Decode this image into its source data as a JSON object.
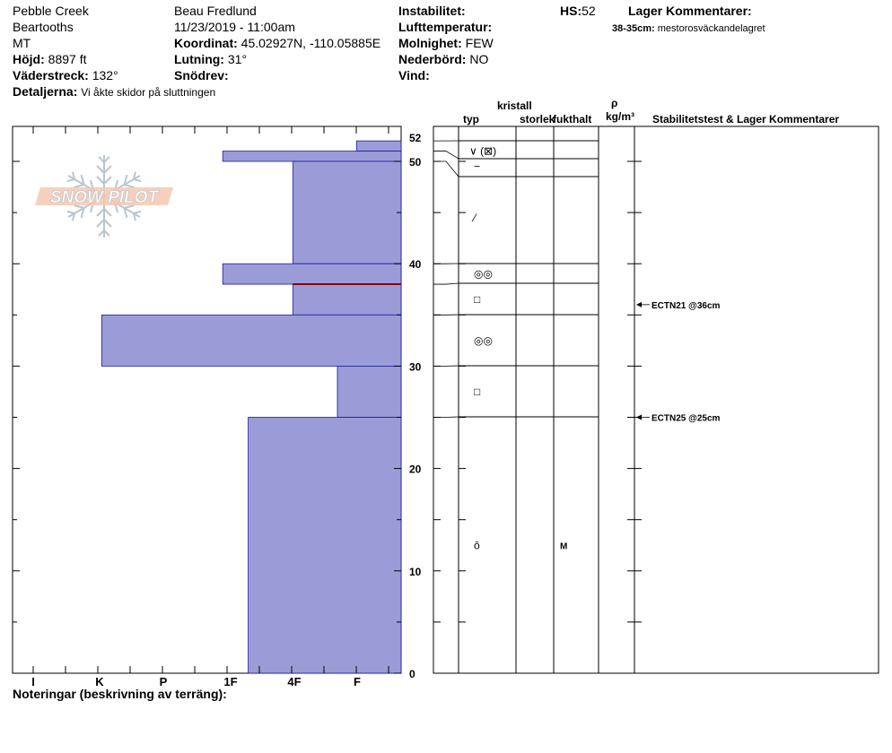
{
  "header": {
    "location": "Pebble Creek",
    "range": "Beartooths",
    "state": "MT",
    "elevation_label": "Höjd:",
    "elevation_value": "8897 ft",
    "aspect_label": "Väderstreck:",
    "aspect_value": "132°",
    "details_label": "Detaljerna:",
    "details_value": "Vi åkte skidor på sluttningen",
    "observer": "Beau  Fredlund",
    "datetime": "11/23/2019 - 11:00am",
    "coord_label": "Koordinat:",
    "coord_value": "45.02927N, -110.05885E",
    "slope_label": "Lutning:",
    "slope_value": "31°",
    "wind_loading_label": "Snödrev:",
    "wind_loading_value": "",
    "instability_label": "Instabilitet:",
    "instability_value": "",
    "air_temp_label": "Lufttemperatur:",
    "air_temp_value": "",
    "sky_label": "Molnighet:",
    "sky_value": "FEW",
    "precip_label": "Nederbörd:",
    "precip_value": "NO",
    "wind_label": "Vind:",
    "wind_value": "",
    "hs_label": "HS:",
    "hs_value": "52",
    "layer_comments_label": "Lager Kommentarer:",
    "layer_comment_depth": "38-35cm:",
    "layer_comment_text": "mestorosväckandelagret"
  },
  "columns": {
    "typ": "typ",
    "kristall": "kristall",
    "storlek": "storlek",
    "fukthalt": "fukthalt",
    "rho": "ρ",
    "density_unit": "kg/m³",
    "stability": "Stabilitetstest & Lager Kommentarer"
  },
  "footer": {
    "notes_label": "Noteringar (beskrivning av terräng):"
  },
  "logo_text": "SNOW PILOT",
  "colors": {
    "hardness_fill": "#9b9bd7",
    "hardness_stroke": "#1a1aa6",
    "weak_layer": "#8b0000"
  },
  "chart_data": {
    "type": "bar",
    "title": "",
    "y_axis": {
      "range": [
        0,
        52
      ],
      "ticks": [
        0,
        10,
        20,
        30,
        40,
        50,
        52
      ]
    },
    "hardness_scale": [
      "I",
      "K",
      "P",
      "1F",
      "4F",
      "F"
    ],
    "layers": [
      {
        "top": 52,
        "bottom": 51,
        "hardness": 0.7
      },
      {
        "top": 51,
        "bottom": 50,
        "hardness": 2.8
      },
      {
        "top": 50,
        "bottom": 40,
        "hardness": 1.7
      },
      {
        "top": 40,
        "bottom": 38,
        "hardness": 2.8
      },
      {
        "top": 38,
        "bottom": 35,
        "hardness": 1.7
      },
      {
        "top": 35,
        "bottom": 30,
        "hardness": 4.7
      },
      {
        "top": 30,
        "bottom": 25,
        "hardness": 1.0
      },
      {
        "top": 25,
        "bottom": 0,
        "hardness": 2.4
      }
    ],
    "weak_layer_depth": 38,
    "layer_boundaries": [
      52,
      51,
      50,
      40,
      38,
      35,
      30,
      25
    ],
    "grain_types": [
      {
        "depth": 51,
        "symbol": "∨ (⊠)"
      },
      {
        "depth": 49.5,
        "symbol": "−"
      },
      {
        "depth": 44.5,
        "symbol": "⁄"
      },
      {
        "depth": 39,
        "symbol": "◎◎"
      },
      {
        "depth": 36.5,
        "symbol": "□"
      },
      {
        "depth": 32.5,
        "symbol": "◎◎"
      },
      {
        "depth": 27.5,
        "symbol": "□"
      },
      {
        "depth": 12.5,
        "symbol": "ȏ"
      }
    ],
    "moisture": [
      {
        "depth": 12.5,
        "value": "M"
      }
    ],
    "stability_tests": [
      {
        "depth": 36,
        "label": "ECTN21 @36cm"
      },
      {
        "depth": 25,
        "label": "ECTN25 @25cm"
      }
    ]
  }
}
